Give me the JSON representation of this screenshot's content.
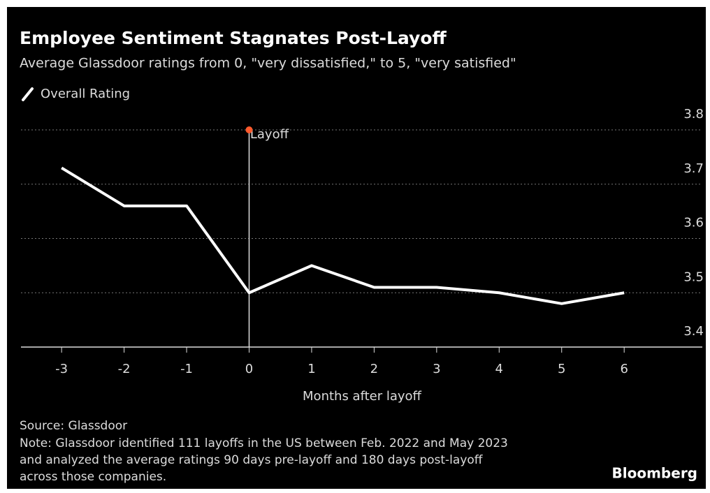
{
  "chart_data": {
    "type": "line",
    "title": "Employee Sentiment Stagnates Post-Layoff",
    "subtitle": "Average Glassdoor ratings from 0, \"very dissatisfied,\" to 5, \"very satisfied\"",
    "x_label": "Months after layoff",
    "x": [
      -3,
      -2,
      -1,
      0,
      1,
      2,
      3,
      4,
      5,
      6
    ],
    "series": [
      {
        "name": "Overall Rating",
        "color": "#ffffff",
        "values": [
          3.73,
          3.66,
          3.66,
          3.5,
          3.55,
          3.51,
          3.51,
          3.5,
          3.48,
          3.5
        ]
      }
    ],
    "xlim": [
      -3.65,
      7.25
    ],
    "xticks": [
      -3,
      -2,
      -1,
      0,
      1,
      2,
      3,
      4,
      5,
      6
    ],
    "ylim": [
      3.4,
      3.8
    ],
    "yticks": [
      3.4,
      3.5,
      3.6,
      3.7,
      3.8
    ],
    "grid": true,
    "annotations": [
      {
        "text": "Layoff",
        "x": 0,
        "y": 3.8,
        "color": "#ff5a2c"
      }
    ],
    "source": "Source: Glassdoor",
    "note": [
      "Note: Glassdoor identified 111 layoffs in the US between Feb. 2022 and May 2023",
      "and analyzed the average ratings 90 days pre-layoff and 180 days post-layoff",
      "across those companies."
    ],
    "logo": "Bloomberg"
  }
}
